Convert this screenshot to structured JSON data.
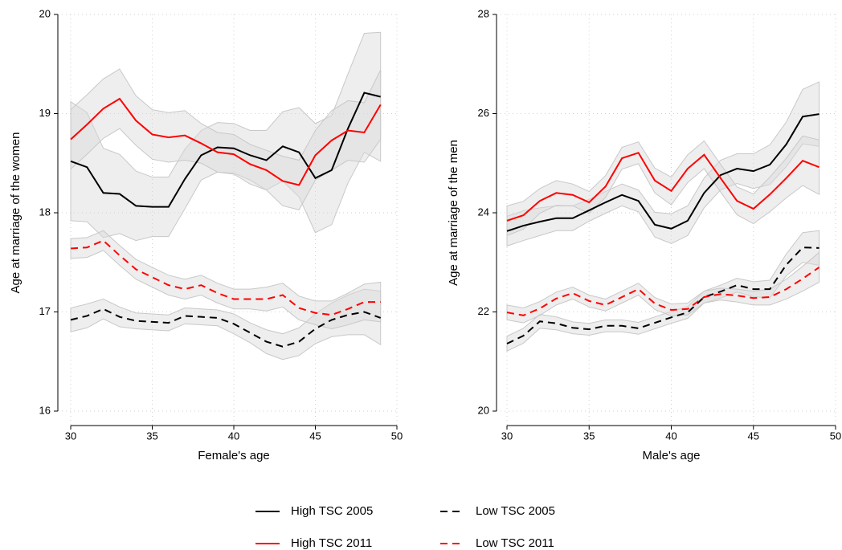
{
  "chart_data": [
    {
      "type": "line",
      "x_label": "Female's age",
      "y_label": "Age at marriage of the women",
      "x": [
        30,
        31,
        32,
        33,
        34,
        35,
        36,
        37,
        38,
        39,
        40,
        41,
        42,
        43,
        44,
        45,
        46,
        47,
        48,
        49
      ],
      "xlim": [
        30,
        50
      ],
      "xticks": [
        30,
        35,
        40,
        45,
        50
      ],
      "ylim": [
        16,
        20
      ],
      "yticks": [
        16,
        17,
        18,
        19,
        20
      ],
      "grid": true,
      "series": [
        {
          "name": "High TSC 2005",
          "color": "#000000",
          "linestyle": "solid",
          "values": [
            18.52,
            18.46,
            18.2,
            18.19,
            18.07,
            18.06,
            18.06,
            18.34,
            18.58,
            18.66,
            18.65,
            18.58,
            18.53,
            18.67,
            18.61,
            18.35,
            18.43,
            18.85,
            19.21,
            19.17
          ],
          "ci": [
            0.6,
            0.55,
            0.45,
            0.4,
            0.35,
            0.3,
            0.3,
            0.3,
            0.25,
            0.25,
            0.25,
            0.25,
            0.3,
            0.35,
            0.45,
            0.55,
            0.55,
            0.55,
            0.6,
            0.65
          ]
        },
        {
          "name": "High TSC 2011",
          "color": "#ff0000",
          "linestyle": "solid",
          "values": [
            18.74,
            18.89,
            19.05,
            19.15,
            18.93,
            18.79,
            18.76,
            18.78,
            18.7,
            18.61,
            18.59,
            18.49,
            18.43,
            18.32,
            18.28,
            18.58,
            18.73,
            18.83,
            18.81,
            19.09
          ],
          "ci": [
            0.3,
            0.3,
            0.3,
            0.3,
            0.25,
            0.25,
            0.25,
            0.25,
            0.2,
            0.2,
            0.2,
            0.2,
            0.2,
            0.25,
            0.25,
            0.25,
            0.3,
            0.3,
            0.3,
            0.35
          ]
        },
        {
          "name": "Low TSC 2005",
          "color": "#000000",
          "linestyle": "dashed",
          "values": [
            16.92,
            16.96,
            17.03,
            16.95,
            16.91,
            16.9,
            16.89,
            16.96,
            16.95,
            16.94,
            16.88,
            16.79,
            16.7,
            16.65,
            16.7,
            16.83,
            16.92,
            16.97,
            17.0,
            16.94
          ],
          "ci": [
            0.12,
            0.12,
            0.1,
            0.1,
            0.08,
            0.08,
            0.08,
            0.08,
            0.08,
            0.08,
            0.1,
            0.1,
            0.12,
            0.13,
            0.14,
            0.15,
            0.17,
            0.2,
            0.23,
            0.27
          ]
        },
        {
          "name": "Low TSC 2011",
          "color": "#ff0000",
          "linestyle": "dashed",
          "values": [
            17.64,
            17.65,
            17.72,
            17.57,
            17.43,
            17.35,
            17.27,
            17.23,
            17.27,
            17.19,
            17.13,
            17.13,
            17.13,
            17.17,
            17.04,
            16.99,
            16.97,
            17.03,
            17.1,
            17.1
          ],
          "ci": [
            0.1,
            0.1,
            0.1,
            0.1,
            0.1,
            0.1,
            0.1,
            0.1,
            0.1,
            0.1,
            0.1,
            0.1,
            0.12,
            0.12,
            0.12,
            0.12,
            0.14,
            0.16,
            0.18,
            0.2
          ]
        }
      ]
    },
    {
      "type": "line",
      "x_label": "Male's age",
      "y_label": "Age at marriage of the men",
      "x": [
        30,
        31,
        32,
        33,
        34,
        35,
        36,
        37,
        38,
        39,
        40,
        41,
        42,
        43,
        44,
        45,
        46,
        47,
        48,
        49
      ],
      "xlim": [
        30,
        50
      ],
      "xticks": [
        30,
        35,
        40,
        45,
        50
      ],
      "ylim": [
        20,
        28
      ],
      "yticks": [
        20,
        22,
        24,
        26,
        28
      ],
      "grid": true,
      "series": [
        {
          "name": "High TSC 2005",
          "color": "#000000",
          "linestyle": "solid",
          "values": [
            23.63,
            23.74,
            23.82,
            23.89,
            23.89,
            24.05,
            24.21,
            24.36,
            24.24,
            23.76,
            23.68,
            23.84,
            24.4,
            24.76,
            24.89,
            24.84,
            24.97,
            25.38,
            25.94,
            25.99
          ],
          "ci": [
            0.3,
            0.3,
            0.28,
            0.25,
            0.25,
            0.22,
            0.22,
            0.22,
            0.22,
            0.25,
            0.3,
            0.3,
            0.3,
            0.3,
            0.3,
            0.35,
            0.4,
            0.45,
            0.55,
            0.65
          ]
        },
        {
          "name": "High TSC 2011",
          "color": "#ff0000",
          "linestyle": "solid",
          "values": [
            23.84,
            23.95,
            24.24,
            24.4,
            24.36,
            24.21,
            24.53,
            25.1,
            25.21,
            24.65,
            24.44,
            24.89,
            25.17,
            24.7,
            24.24,
            24.08,
            24.37,
            24.7,
            25.05,
            24.92
          ],
          "ci": [
            0.3,
            0.28,
            0.25,
            0.25,
            0.22,
            0.22,
            0.22,
            0.22,
            0.22,
            0.25,
            0.28,
            0.28,
            0.28,
            0.28,
            0.28,
            0.3,
            0.35,
            0.4,
            0.5,
            0.55
          ]
        },
        {
          "name": "Low TSC 2005",
          "color": "#000000",
          "linestyle": "dashed",
          "values": [
            21.36,
            21.52,
            21.81,
            21.77,
            21.68,
            21.65,
            21.72,
            21.72,
            21.67,
            21.78,
            21.89,
            21.99,
            22.3,
            22.41,
            22.54,
            22.46,
            22.46,
            22.95,
            23.3,
            23.29
          ],
          "ci": [
            0.15,
            0.15,
            0.14,
            0.13,
            0.12,
            0.12,
            0.12,
            0.12,
            0.12,
            0.12,
            0.12,
            0.12,
            0.12,
            0.13,
            0.14,
            0.15,
            0.18,
            0.22,
            0.3,
            0.35
          ]
        },
        {
          "name": "Low TSC 2011",
          "color": "#ff0000",
          "linestyle": "dashed",
          "values": [
            21.99,
            21.93,
            22.07,
            22.27,
            22.38,
            22.22,
            22.14,
            22.3,
            22.46,
            22.17,
            22.04,
            22.06,
            22.3,
            22.36,
            22.33,
            22.28,
            22.3,
            22.46,
            22.67,
            22.9
          ],
          "ci": [
            0.15,
            0.15,
            0.14,
            0.13,
            0.12,
            0.12,
            0.12,
            0.12,
            0.12,
            0.12,
            0.12,
            0.12,
            0.12,
            0.12,
            0.13,
            0.14,
            0.16,
            0.2,
            0.25,
            0.3
          ]
        }
      ]
    }
  ]
}
